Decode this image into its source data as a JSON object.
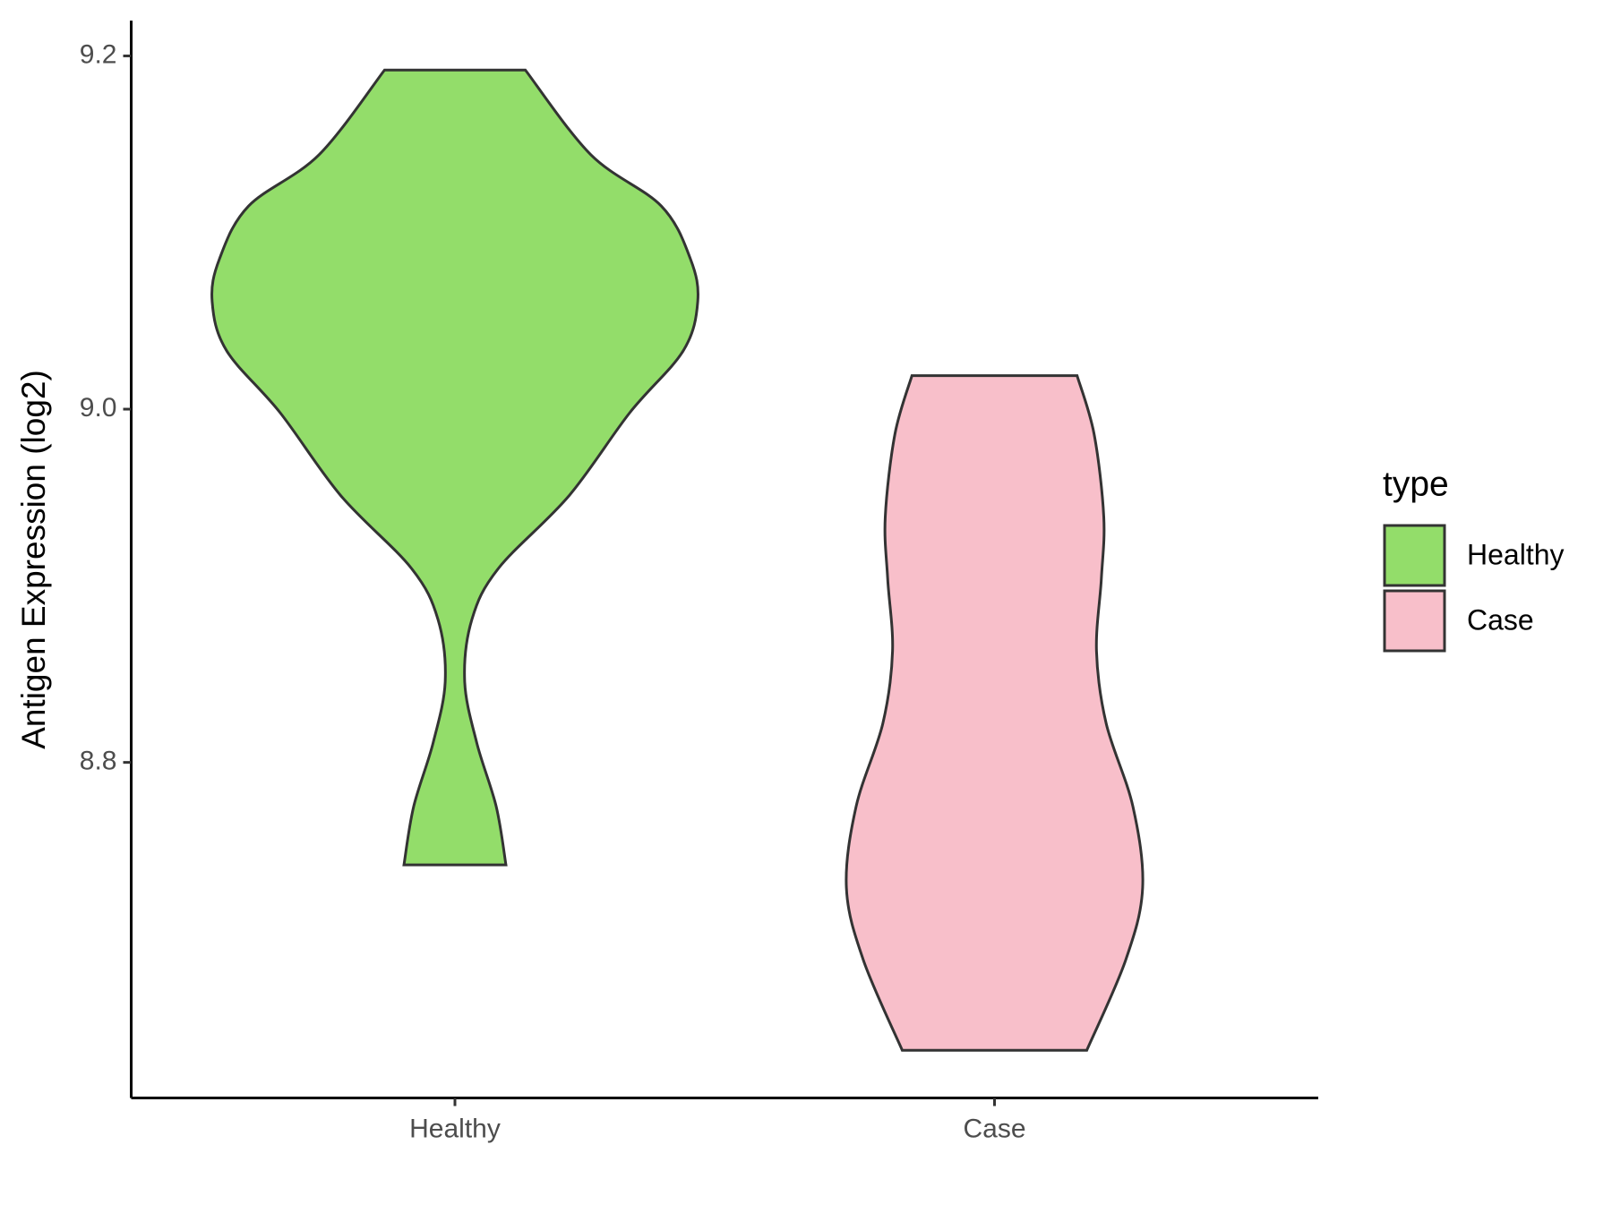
{
  "chart_data": {
    "type": "violin",
    "y_label": "Antigen Expression (log2)",
    "categories": [
      "Healthy",
      "Case"
    ],
    "legend_title": "type",
    "legend": "right",
    "series": [
      {
        "name": "Healthy",
        "color": "#93dd6a",
        "y": [
          9.192,
          9.144,
          9.115,
          9.085,
          9.061,
          9.033,
          8.998,
          8.951,
          8.91,
          8.881,
          8.846,
          8.811,
          8.775,
          8.742
        ],
        "width": [
          0.29,
          0.56,
          0.85,
          0.97,
          1.0,
          0.94,
          0.72,
          0.47,
          0.18,
          0.07,
          0.04,
          0.09,
          0.17,
          0.21
        ]
      },
      {
        "name": "Case",
        "color": "#f8bfca",
        "y": [
          9.019,
          8.986,
          8.939,
          8.904,
          8.863,
          8.822,
          8.775,
          8.729,
          8.688,
          8.637
        ],
        "width": [
          0.34,
          0.41,
          0.45,
          0.44,
          0.42,
          0.46,
          0.57,
          0.61,
          0.54,
          0.38
        ]
      }
    ],
    "ylim": [
      8.61,
      9.22
    ],
    "yticks": [
      8.8,
      {
        "value": 9,
        "label": "9.0"
      },
      9.2
    ]
  }
}
